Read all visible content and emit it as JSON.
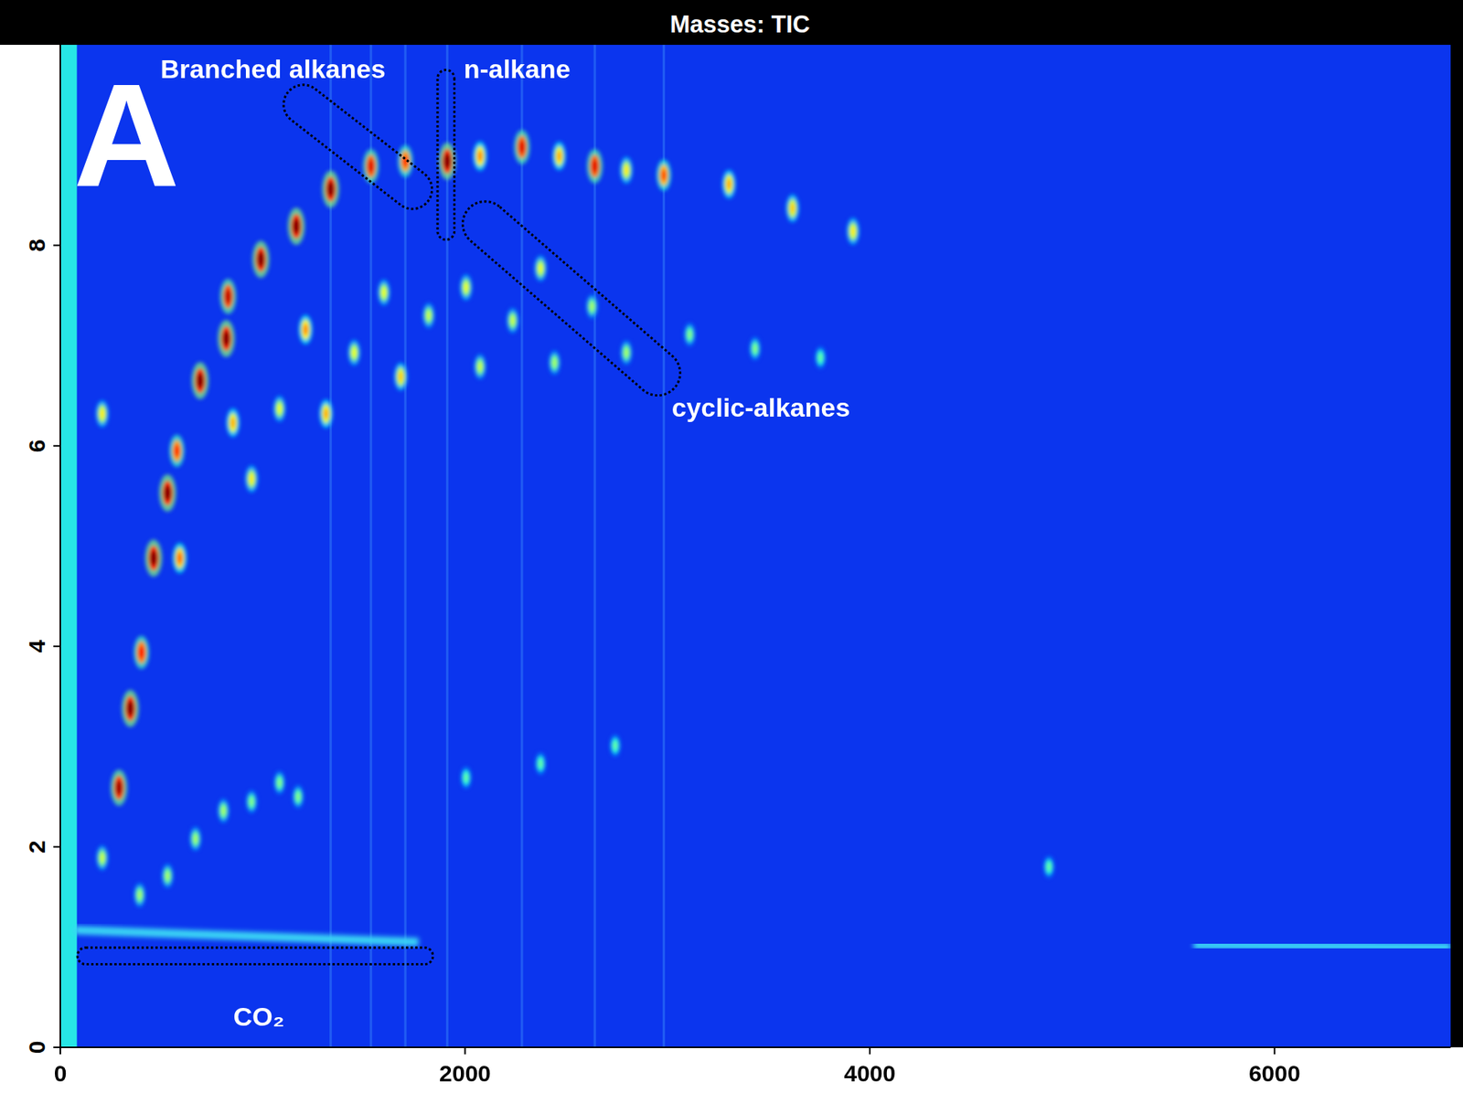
{
  "chart_data": {
    "type": "scatter",
    "title": "Masses: TIC",
    "panel": "A",
    "xlim": [
      0,
      6870
    ],
    "ylim": [
      0,
      10
    ],
    "xticks": [
      0,
      2000,
      4000,
      6000
    ],
    "yticks": [
      0,
      2,
      4,
      6,
      8
    ],
    "x": [
      290,
      346,
      401,
      461,
      530,
      576,
      691,
      820,
      829,
      991,
      1166,
      1336,
      1535,
      1705,
      1912,
      2074,
      2281,
      2465,
      2641,
      2797,
      2982,
      3304,
      3618,
      3917,
      853,
      945,
      590,
      1083,
      1313,
      1212,
      1452,
      1682,
      1599,
      1820,
      2005,
      2074,
      2235,
      2373,
      2442,
      2627,
      2797,
      3110,
      3433,
      3756,
      207,
      392,
      530,
      668,
      806,
      945,
      1083,
      1175,
      2005,
      2373,
      2742,
      4885,
      207
    ],
    "values": [
      2.59,
      3.38,
      3.94,
      4.88,
      5.53,
      5.95,
      6.65,
      7.07,
      7.49,
      7.86,
      8.19,
      8.56,
      8.79,
      8.84,
      8.84,
      8.89,
      8.98,
      8.89,
      8.79,
      8.75,
      8.7,
      8.61,
      8.37,
      8.14,
      6.23,
      5.67,
      4.88,
      6.37,
      6.32,
      7.16,
      6.93,
      6.69,
      7.53,
      7.3,
      7.58,
      6.79,
      7.25,
      7.77,
      6.83,
      7.39,
      6.93,
      7.11,
      6.97,
      6.88,
      1.89,
      1.52,
      1.71,
      2.08,
      2.36,
      2.45,
      2.64,
      2.5,
      2.69,
      2.83,
      3.01,
      1.8,
      6.32
    ],
    "intensity": [
      0.95,
      1.0,
      0.8,
      1.0,
      1.0,
      0.75,
      1.0,
      1.0,
      0.9,
      1.0,
      1.0,
      1.0,
      0.85,
      0.75,
      1.0,
      0.6,
      0.85,
      0.55,
      0.85,
      0.45,
      0.7,
      0.55,
      0.5,
      0.45,
      0.55,
      0.45,
      0.65,
      0.4,
      0.55,
      0.6,
      0.4,
      0.5,
      0.4,
      0.35,
      0.4,
      0.35,
      0.35,
      0.4,
      0.3,
      0.3,
      0.3,
      0.25,
      0.25,
      0.2,
      0.35,
      0.3,
      0.3,
      0.3,
      0.3,
      0.25,
      0.25,
      0.25,
      0.2,
      0.2,
      0.2,
      0.2,
      0.45
    ],
    "streaks": [
      {
        "x": [
          40,
          40
        ],
        "values": [
          0,
          10
        ]
      },
      {
        "x": [
          70,
          1770
        ],
        "values": [
          1.17,
          1.05
        ]
      },
      {
        "x": [
          5600,
          6870
        ],
        "values": [
          1.02,
          1.0
        ]
      }
    ],
    "annotations": [
      "Branched alkanes",
      "n-alkane",
      "cyclic-alkanes",
      "CO₂"
    ]
  }
}
